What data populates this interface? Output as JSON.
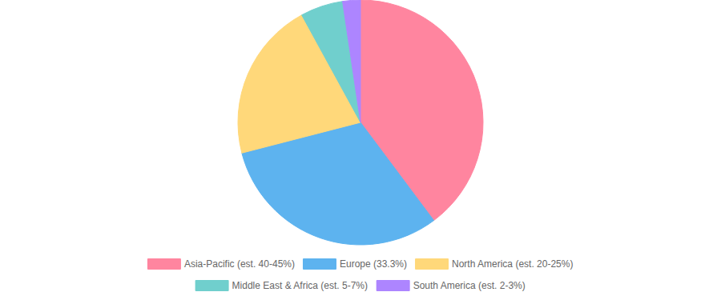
{
  "chart_data": {
    "type": "pie",
    "categories": [
      "Asia-Pacific (est. 40-45%)",
      "Europe (33.3%)",
      "North America (est. 20-25%)",
      "Middle East & Africa (est. 5-7%)",
      "South America (est. 2-3%)"
    ],
    "values": [
      42.5,
      33.3,
      22.5,
      6,
      2.5
    ],
    "colors": [
      "#ff859f",
      "#5db3ef",
      "#ffd87a",
      "#70cfcd",
      "#ad85ff"
    ],
    "legend": "bottom"
  }
}
